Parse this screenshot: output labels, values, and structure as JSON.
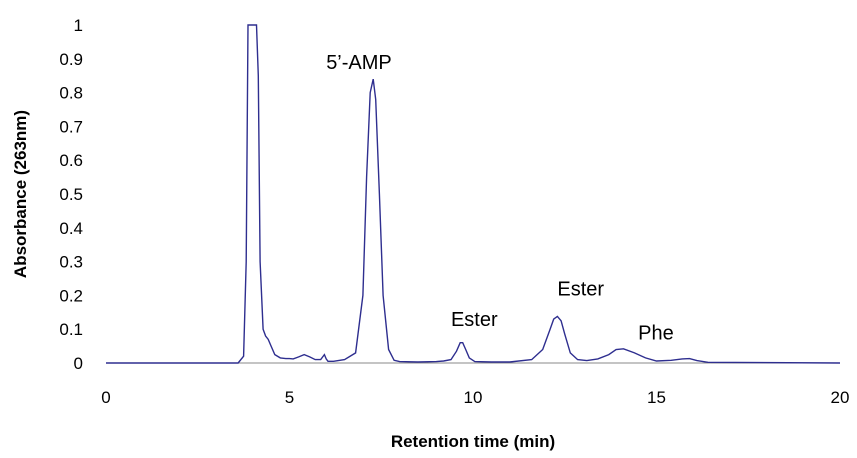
{
  "chart_data": {
    "type": "line",
    "title": "",
    "xlabel": "Retention time  (min)",
    "ylabel": "Absorbance (263nm)",
    "xlim": [
      0,
      20
    ],
    "ylim": [
      0,
      1
    ],
    "x_ticks": [
      0,
      5,
      10,
      15,
      20
    ],
    "y_ticks": [
      0,
      0.1,
      0.2,
      0.3,
      0.4,
      0.5,
      0.6,
      0.7,
      0.8,
      0.9,
      1
    ],
    "grid": false,
    "legend": "none",
    "series_color": "#2e2e8f",
    "series": [
      {
        "x": [
          0.0,
          3.6,
          3.75,
          3.82,
          3.87,
          3.9,
          4.1,
          4.15,
          4.2,
          4.28,
          4.35,
          4.42,
          4.5,
          4.6,
          4.75,
          4.9,
          5.0,
          5.1,
          5.25,
          5.4,
          5.55,
          5.7,
          5.85,
          5.95,
          6.0,
          6.05,
          6.2,
          6.5,
          6.8,
          7.0,
          7.1,
          7.2,
          7.28,
          7.35,
          7.45,
          7.55,
          7.7,
          7.85,
          8.0,
          8.5,
          9.0,
          9.2,
          9.4,
          9.55,
          9.65,
          9.72,
          9.8,
          9.9,
          10.05,
          10.5,
          11.0,
          11.6,
          11.9,
          12.1,
          12.2,
          12.3,
          12.4,
          12.5,
          12.65,
          12.85,
          13.1,
          13.4,
          13.7,
          13.9,
          14.1,
          14.4,
          14.7,
          15.0,
          15.4,
          15.7,
          15.9,
          16.1,
          16.4,
          20.0
        ],
        "y": [
          0.0,
          0.0,
          0.02,
          0.3,
          1.0,
          1.0,
          1.0,
          0.85,
          0.3,
          0.1,
          0.08,
          0.07,
          0.05,
          0.025,
          0.015,
          0.013,
          0.013,
          0.012,
          0.018,
          0.025,
          0.018,
          0.01,
          0.01,
          0.025,
          0.012,
          0.005,
          0.005,
          0.01,
          0.03,
          0.2,
          0.55,
          0.8,
          0.84,
          0.78,
          0.5,
          0.2,
          0.04,
          0.008,
          0.004,
          0.003,
          0.004,
          0.006,
          0.01,
          0.035,
          0.06,
          0.06,
          0.04,
          0.015,
          0.004,
          0.003,
          0.003,
          0.01,
          0.04,
          0.1,
          0.13,
          0.138,
          0.125,
          0.085,
          0.03,
          0.01,
          0.007,
          0.012,
          0.025,
          0.04,
          0.042,
          0.03,
          0.015,
          0.006,
          0.008,
          0.012,
          0.013,
          0.007,
          0.002,
          0.0
        ]
      }
    ],
    "annotations": [
      {
        "text": "5’-AMP",
        "x": 6.0,
        "y": 0.87
      },
      {
        "text": "Ester",
        "x": 9.4,
        "y": 0.11
      },
      {
        "text": "Ester",
        "x": 12.3,
        "y": 0.2
      },
      {
        "text": "Phe",
        "x": 14.5,
        "y": 0.07
      }
    ]
  }
}
